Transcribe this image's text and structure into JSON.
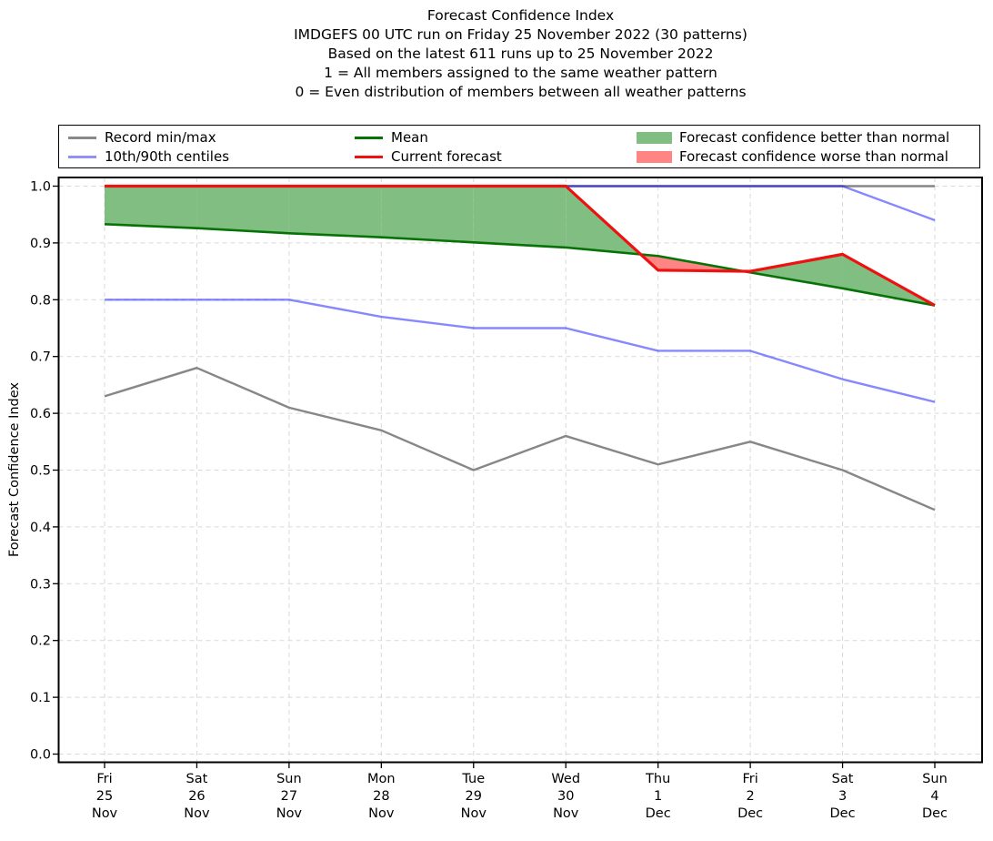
{
  "chart_data": {
    "type": "line",
    "title_lines": [
      "Forecast Confidence Index",
      "IMDGEFS 00 UTC run on Friday 25 November 2022 (30 patterns)",
      "Based on the latest 611 runs up to 25 November 2022",
      "1 = All members assigned to the same weather pattern",
      "0 = Even distribution of members between all weather patterns"
    ],
    "ylabel": "Forecast Confidence Index",
    "ylim": [
      0.0,
      1.0
    ],
    "ytick_labels": [
      "0.0",
      "0.1",
      "0.2",
      "0.3",
      "0.4",
      "0.5",
      "0.6",
      "0.7",
      "0.8",
      "0.9",
      "1.0"
    ],
    "grid": true,
    "grid_color": "#d9d9d9",
    "legend_position": "top",
    "categories": [
      {
        "day": "Fri",
        "date": "25",
        "month": "Nov"
      },
      {
        "day": "Sat",
        "date": "26",
        "month": "Nov"
      },
      {
        "day": "Sun",
        "date": "27",
        "month": "Nov"
      },
      {
        "day": "Mon",
        "date": "28",
        "month": "Nov"
      },
      {
        "day": "Tue",
        "date": "29",
        "month": "Nov"
      },
      {
        "day": "Wed",
        "date": "30",
        "month": "Nov"
      },
      {
        "day": "Thu",
        "date": "1",
        "month": "Dec"
      },
      {
        "day": "Fri",
        "date": "2",
        "month": "Dec"
      },
      {
        "day": "Sat",
        "date": "3",
        "month": "Dec"
      },
      {
        "day": "Sun",
        "date": "4",
        "month": "Dec"
      }
    ],
    "series": [
      {
        "name": "Record max",
        "role": "record",
        "color": "#878787",
        "width": 2.4,
        "values": [
          1.0,
          1.0,
          1.0,
          1.0,
          1.0,
          1.0,
          1.0,
          1.0,
          1.0,
          1.0
        ]
      },
      {
        "name": "Record min",
        "role": "record",
        "color": "#878787",
        "width": 2.4,
        "values": [
          0.63,
          0.68,
          0.61,
          0.57,
          0.5,
          0.56,
          0.51,
          0.55,
          0.5,
          0.43
        ]
      },
      {
        "name": "90th centile",
        "role": "centile",
        "color": "rgba(0,0,255,0.47)",
        "width": 2.4,
        "values": [
          1.0,
          1.0,
          1.0,
          1.0,
          1.0,
          1.0,
          1.0,
          1.0,
          1.0,
          0.94
        ]
      },
      {
        "name": "10th centile",
        "role": "centile",
        "color": "rgba(0,0,255,0.47)",
        "width": 2.4,
        "values": [
          0.8,
          0.8,
          0.8,
          0.77,
          0.75,
          0.75,
          0.71,
          0.71,
          0.66,
          0.62
        ]
      },
      {
        "name": "Mean",
        "role": "mean",
        "color": "#077307",
        "width": 2.6,
        "values": [
          0.933,
          0.926,
          0.917,
          0.91,
          0.901,
          0.892,
          0.877,
          0.848,
          0.82,
          0.79
        ]
      },
      {
        "name": "Current forecast",
        "role": "current",
        "color": "#ee1111",
        "width": 3.2,
        "values": [
          1.0,
          1.0,
          1.0,
          1.0,
          1.0,
          1.0,
          0.852,
          0.85,
          0.88,
          0.79
        ]
      }
    ],
    "fills": {
      "upper_series": "Current forecast",
      "lower_series": "Mean",
      "better_label": "Forecast confidence better than normal",
      "worse_label": "Forecast confidence worse than normal",
      "better_color": "#81be81",
      "worse_color": "#ff8484"
    },
    "legend": [
      {
        "label": "Record min/max",
        "swatch": "line",
        "color": "#888888"
      },
      {
        "label": "10th/90th centiles",
        "swatch": "line",
        "color": "#9191f1"
      },
      {
        "label": "Mean",
        "swatch": "line",
        "color": "#077307"
      },
      {
        "label": "Current forecast",
        "swatch": "line",
        "color": "#ee1111"
      },
      {
        "label": "Forecast confidence better than normal",
        "swatch": "patch",
        "color": "#81be81"
      },
      {
        "label": "Forecast confidence worse than normal",
        "swatch": "patch",
        "color": "#ff8484"
      }
    ]
  }
}
